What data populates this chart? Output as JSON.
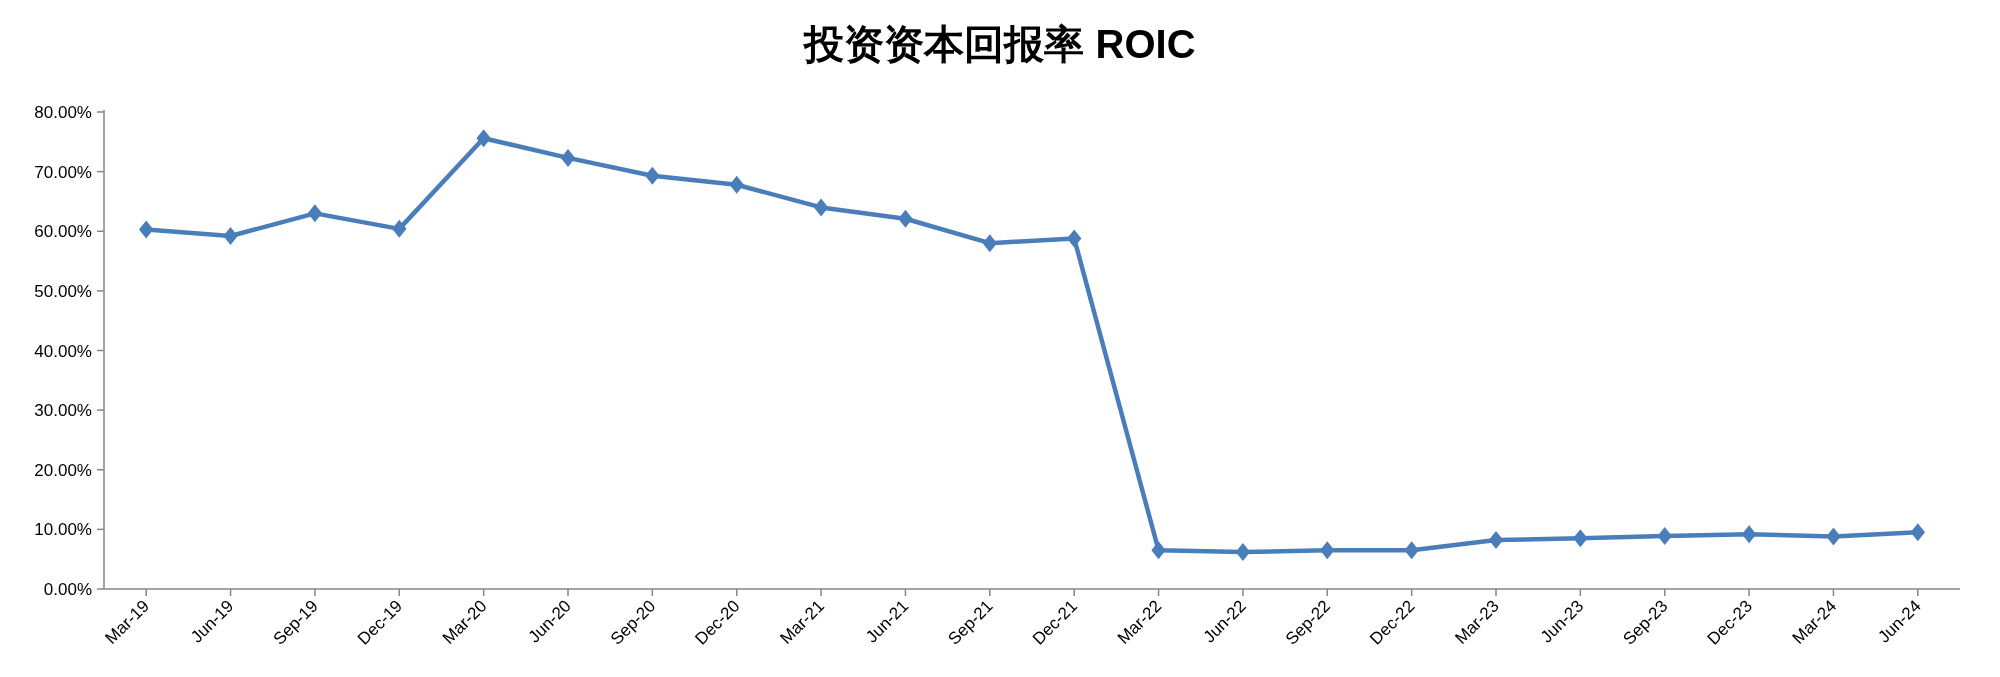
{
  "chart_data": {
    "type": "line",
    "title": "投资资本回报率 ROIC",
    "categories": [
      "Mar-19",
      "Jun-19",
      "Sep-19",
      "Dec-19",
      "Mar-20",
      "Jun-20",
      "Sep-20",
      "Dec-20",
      "Mar-21",
      "Jun-21",
      "Sep-21",
      "Dec-21",
      "Mar-22",
      "Jun-22",
      "Sep-22",
      "Dec-22",
      "Mar-23",
      "Jun-23",
      "Sep-23",
      "Dec-23",
      "Mar-24",
      "Jun-24"
    ],
    "series": [
      {
        "color": "#4a7ebb",
        "values": [
          60.3,
          59.2,
          63.0,
          60.4,
          75.6,
          72.3,
          69.3,
          67.8,
          64.0,
          62.1,
          58.0,
          58.8,
          6.5,
          6.2,
          6.5,
          6.5,
          8.2,
          8.5,
          8.9,
          9.2,
          8.8,
          9.5
        ]
      }
    ],
    "ylim": [
      0,
      80
    ],
    "yticks": [
      {
        "value": 0,
        "label": "0.00%"
      },
      {
        "value": 10,
        "label": "10.00%"
      },
      {
        "value": 20,
        "label": "20.00%"
      },
      {
        "value": 30,
        "label": "30.00%"
      },
      {
        "value": 40,
        "label": "40.00%"
      },
      {
        "value": 50,
        "label": "50.00%"
      },
      {
        "value": 60,
        "label": "60.00%"
      },
      {
        "value": 70,
        "label": "70.00%"
      },
      {
        "value": 80,
        "label": "80.00%"
      }
    ],
    "marker": "diamond",
    "line_style": "solid",
    "grid": false
  }
}
